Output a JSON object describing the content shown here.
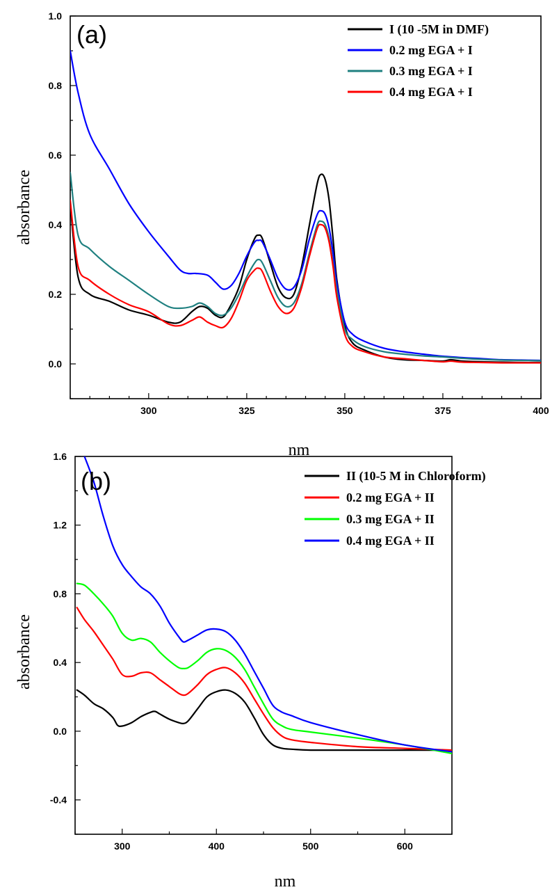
{
  "chart_data": [
    {
      "panel_label": "(a)",
      "type": "line",
      "xlabel": "nm",
      "ylabel": "absorbance",
      "xlim": [
        280,
        400
      ],
      "ylim": [
        -0.1,
        1.0
      ],
      "x_ticks": [
        300,
        325,
        350,
        375,
        400
      ],
      "y_ticks": [
        0.0,
        0.2,
        0.4,
        0.6,
        0.8,
        1.0
      ],
      "x_tick_labels": [
        "300",
        "325",
        "350",
        "375",
        "400"
      ],
      "y_tick_labels": [
        "0.0",
        "0.2",
        "0.4",
        "0.6",
        "0.8",
        "1.0"
      ],
      "legend_position": "top-right",
      "series": [
        {
          "name": "I (10 -5M in DMF)",
          "color": "#000000",
          "x": [
            280,
            282,
            285,
            290,
            295,
            300,
            305,
            308,
            311,
            313,
            315,
            317,
            319,
            321,
            323,
            325,
            327,
            328,
            329,
            331,
            333,
            335,
            337,
            339,
            341,
            343,
            344,
            345,
            346,
            347,
            348,
            350,
            352,
            355,
            360,
            365,
            370,
            375,
            377,
            380,
            385,
            390,
            395,
            400
          ],
          "y": [
            0.46,
            0.25,
            0.2,
            0.18,
            0.155,
            0.14,
            0.12,
            0.12,
            0.15,
            0.165,
            0.16,
            0.14,
            0.135,
            0.17,
            0.22,
            0.3,
            0.36,
            0.37,
            0.36,
            0.29,
            0.22,
            0.19,
            0.2,
            0.28,
            0.4,
            0.52,
            0.545,
            0.53,
            0.47,
            0.36,
            0.24,
            0.11,
            0.06,
            0.04,
            0.02,
            0.012,
            0.01,
            0.008,
            0.012,
            0.008,
            0.006,
            0.005,
            0.004,
            0.004
          ]
        },
        {
          "name": "0.2 mg EGA + I",
          "color": "#0000ff",
          "x": [
            280,
            282,
            285,
            290,
            295,
            300,
            305,
            308,
            310,
            312,
            315,
            317,
            319,
            321,
            323,
            325,
            327,
            328,
            329,
            331,
            333,
            335,
            337,
            339,
            341,
            343,
            344,
            345,
            346,
            347,
            348,
            350,
            352,
            355,
            360,
            365,
            370,
            375,
            380,
            385,
            390,
            395,
            400
          ],
          "y": [
            0.9,
            0.78,
            0.66,
            0.56,
            0.46,
            0.38,
            0.31,
            0.27,
            0.26,
            0.26,
            0.255,
            0.235,
            0.215,
            0.225,
            0.26,
            0.31,
            0.35,
            0.355,
            0.35,
            0.3,
            0.245,
            0.215,
            0.22,
            0.27,
            0.36,
            0.43,
            0.44,
            0.43,
            0.39,
            0.32,
            0.23,
            0.12,
            0.085,
            0.065,
            0.045,
            0.035,
            0.028,
            0.022,
            0.018,
            0.015,
            0.012,
            0.011,
            0.01
          ]
        },
        {
          "name": "0.3 mg EGA + I",
          "color": "#1f8080",
          "x": [
            280,
            282,
            285,
            290,
            295,
            300,
            305,
            308,
            311,
            313,
            315,
            317,
            319,
            321,
            323,
            325,
            327,
            328,
            329,
            331,
            333,
            335,
            337,
            339,
            341,
            343,
            344,
            345,
            346,
            347,
            348,
            350,
            352,
            355,
            360,
            365,
            370,
            375,
            380,
            385,
            390,
            395,
            400
          ],
          "y": [
            0.55,
            0.37,
            0.33,
            0.28,
            0.24,
            0.2,
            0.165,
            0.16,
            0.165,
            0.175,
            0.165,
            0.145,
            0.14,
            0.16,
            0.2,
            0.25,
            0.29,
            0.3,
            0.29,
            0.24,
            0.19,
            0.165,
            0.175,
            0.23,
            0.32,
            0.4,
            0.41,
            0.4,
            0.36,
            0.29,
            0.21,
            0.1,
            0.07,
            0.05,
            0.035,
            0.028,
            0.023,
            0.02,
            0.016,
            0.013,
            0.011,
            0.01,
            0.009
          ]
        },
        {
          "name": "0.4 mg EGA + I",
          "color": "#ff0000",
          "x": [
            280,
            282,
            285,
            290,
            295,
            300,
            305,
            308,
            311,
            313,
            315,
            317,
            319,
            321,
            323,
            325,
            327,
            328,
            329,
            331,
            333,
            335,
            337,
            339,
            341,
            343,
            344,
            345,
            346,
            347,
            348,
            350,
            352,
            355,
            360,
            365,
            370,
            375,
            377,
            380,
            385,
            390,
            395,
            400
          ],
          "y": [
            0.47,
            0.28,
            0.24,
            0.2,
            0.17,
            0.15,
            0.115,
            0.11,
            0.125,
            0.135,
            0.12,
            0.11,
            0.105,
            0.13,
            0.18,
            0.24,
            0.27,
            0.275,
            0.265,
            0.21,
            0.165,
            0.145,
            0.16,
            0.22,
            0.31,
            0.39,
            0.4,
            0.39,
            0.35,
            0.28,
            0.19,
            0.085,
            0.05,
            0.035,
            0.02,
            0.015,
            0.01,
            0.006,
            0.008,
            0.005,
            0.004,
            0.003,
            0.003,
            0.003
          ]
        }
      ]
    },
    {
      "panel_label": "(b)",
      "type": "line",
      "xlabel": "nm",
      "ylabel": "absorbance",
      "xlim": [
        250,
        650
      ],
      "ylim": [
        -0.6,
        1.6
      ],
      "x_ticks": [
        300,
        400,
        500,
        600
      ],
      "y_ticks": [
        -0.4,
        0.0,
        0.4,
        0.8,
        1.2,
        1.6
      ],
      "x_tick_labels": [
        "300",
        "400",
        "500",
        "600"
      ],
      "y_tick_labels": [
        "-0.4",
        "0.0",
        "0.4",
        "0.8",
        "1.2",
        "1.6"
      ],
      "legend_position": "top-right",
      "series": [
        {
          "name": "II (10-5 M in Chloroform)",
          "color": "#000000",
          "x": [
            252,
            260,
            270,
            280,
            290,
            295,
            300,
            310,
            320,
            330,
            335,
            340,
            350,
            360,
            365,
            370,
            380,
            390,
            400,
            410,
            420,
            430,
            440,
            450,
            460,
            470,
            480,
            500,
            550,
            600,
            650
          ],
          "y": [
            0.24,
            0.21,
            0.16,
            0.13,
            0.08,
            0.035,
            0.03,
            0.05,
            0.085,
            0.11,
            0.115,
            0.1,
            0.07,
            0.05,
            0.045,
            0.06,
            0.13,
            0.2,
            0.23,
            0.24,
            0.22,
            0.17,
            0.08,
            -0.02,
            -0.08,
            -0.1,
            -0.105,
            -0.11,
            -0.11,
            -0.11,
            -0.11
          ]
        },
        {
          "name": "0.2 mg  EGA + II",
          "color": "#ff0000",
          "x": [
            252,
            260,
            270,
            280,
            290,
            300,
            310,
            320,
            330,
            340,
            350,
            360,
            365,
            370,
            380,
            390,
            400,
            410,
            420,
            430,
            440,
            450,
            460,
            470,
            480,
            500,
            550,
            600,
            650
          ],
          "y": [
            0.72,
            0.65,
            0.58,
            0.5,
            0.42,
            0.33,
            0.32,
            0.34,
            0.34,
            0.3,
            0.26,
            0.22,
            0.21,
            0.22,
            0.27,
            0.33,
            0.36,
            0.37,
            0.34,
            0.28,
            0.19,
            0.1,
            0.02,
            -0.03,
            -0.05,
            -0.065,
            -0.09,
            -0.1,
            -0.11
          ]
        },
        {
          "name": "0.3 mg  EGA + II",
          "color": "#00ff00",
          "x": [
            252,
            260,
            270,
            280,
            290,
            300,
            310,
            320,
            330,
            340,
            350,
            360,
            365,
            370,
            380,
            390,
            400,
            410,
            420,
            430,
            440,
            450,
            460,
            470,
            480,
            500,
            550,
            600,
            650
          ],
          "y": [
            0.86,
            0.85,
            0.8,
            0.74,
            0.67,
            0.57,
            0.53,
            0.54,
            0.52,
            0.46,
            0.41,
            0.37,
            0.365,
            0.37,
            0.41,
            0.46,
            0.48,
            0.47,
            0.43,
            0.36,
            0.26,
            0.16,
            0.07,
            0.03,
            0.01,
            -0.005,
            -0.04,
            -0.08,
            -0.13
          ]
        },
        {
          "name": "0.4 mg  EGA + II",
          "color": "#0000ff",
          "x": [
            260,
            270,
            280,
            290,
            300,
            310,
            320,
            330,
            340,
            350,
            360,
            365,
            370,
            380,
            390,
            400,
            410,
            420,
            430,
            440,
            450,
            460,
            470,
            480,
            500,
            550,
            600,
            650
          ],
          "y": [
            1.6,
            1.45,
            1.25,
            1.08,
            0.97,
            0.9,
            0.84,
            0.8,
            0.73,
            0.63,
            0.55,
            0.52,
            0.53,
            0.56,
            0.59,
            0.595,
            0.58,
            0.53,
            0.45,
            0.35,
            0.25,
            0.15,
            0.11,
            0.09,
            0.05,
            -0.02,
            -0.08,
            -0.12
          ]
        }
      ]
    }
  ]
}
